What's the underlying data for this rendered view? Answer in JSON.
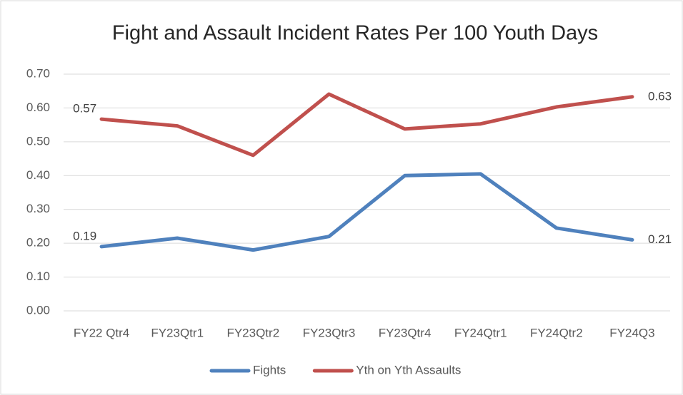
{
  "chart_data": {
    "type": "line",
    "title": "Fight and Assault Incident Rates Per 100 Youth Days",
    "categories": [
      "FY22 Qtr4",
      "FY23Qtr1",
      "FY23Qtr2",
      "FY23Qtr3",
      "FY23Qtr4",
      "FY24Qtr1",
      "FY24Qtr2",
      "FY24Q3"
    ],
    "series": [
      {
        "name": "Fights",
        "color": "#4f81bd",
        "values": [
          0.19,
          0.215,
          0.18,
          0.22,
          0.4,
          0.405,
          0.245,
          0.21
        ],
        "value_labels": [
          "0.19",
          null,
          null,
          null,
          null,
          null,
          null,
          "0.21"
        ]
      },
      {
        "name": "Yth on Yth Assaults",
        "color": "#c0504d",
        "values": [
          0.567,
          0.547,
          0.46,
          0.641,
          0.538,
          0.553,
          0.603,
          0.633
        ],
        "value_labels": [
          "0.57",
          null,
          null,
          null,
          null,
          null,
          null,
          "0.63"
        ]
      }
    ],
    "ylim": [
      0,
      0.7
    ],
    "yticks": [
      {
        "value": 0,
        "label": "0.00"
      },
      {
        "value": 0.1,
        "label": "0.10"
      },
      {
        "value": 0.2,
        "label": "0.20"
      },
      {
        "value": 0.3,
        "label": "0.30"
      },
      {
        "value": 0.4,
        "label": "0.40"
      },
      {
        "value": 0.5,
        "label": "0.50"
      },
      {
        "value": 0.6,
        "label": "0.60"
      },
      {
        "value": 0.7,
        "label": "0.70"
      }
    ],
    "grid": true,
    "legend": "bottom"
  }
}
